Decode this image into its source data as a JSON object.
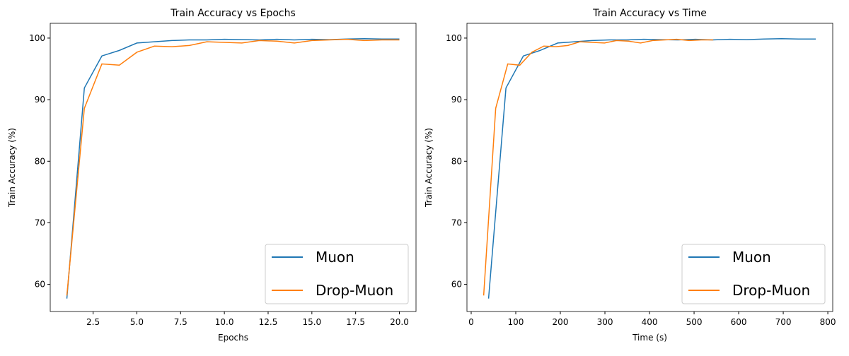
{
  "chart_data": [
    {
      "type": "line",
      "title": "Train Accuracy vs Epochs",
      "x_label": "Epochs",
      "y_label": "Train Accuracy (%)",
      "x": [
        1,
        2,
        3,
        4,
        5,
        6,
        7,
        8,
        9,
        10,
        11,
        12,
        13,
        14,
        15,
        16,
        17,
        18,
        19,
        20
      ],
      "series": [
        {
          "name": "Muon",
          "color": "#1f77b4",
          "values": [
            57.7,
            91.9,
            97.1,
            98.0,
            99.2,
            99.4,
            99.6,
            99.7,
            99.7,
            99.8,
            99.75,
            99.7,
            99.8,
            99.7,
            99.8,
            99.75,
            99.85,
            99.9,
            99.85,
            99.85
          ]
        },
        {
          "name": "Drop-Muon",
          "color": "#ff7f0e",
          "values": [
            58.2,
            88.6,
            95.8,
            95.6,
            97.7,
            98.7,
            98.6,
            98.8,
            99.4,
            99.3,
            99.2,
            99.6,
            99.5,
            99.2,
            99.6,
            99.7,
            99.8,
            99.6,
            99.7,
            99.7
          ]
        }
      ],
      "xlim": [
        0.05,
        20.95
      ],
      "ylim": [
        55.6,
        102.4
      ],
      "xticks": [
        {
          "value": 2.5,
          "label": "2.5"
        },
        {
          "value": 5,
          "label": "5.0"
        },
        {
          "value": 7.5,
          "label": "7.5"
        },
        {
          "value": 10,
          "label": "10.0"
        },
        {
          "value": 12.5,
          "label": "12.5"
        },
        {
          "value": 15,
          "label": "15.0"
        },
        {
          "value": 17.5,
          "label": "17.5"
        },
        {
          "value": 20,
          "label": "20.0"
        }
      ],
      "yticks": [
        60,
        70,
        80,
        90,
        100
      ],
      "legend": "lower right"
    },
    {
      "type": "line",
      "title": "Train Accuracy vs Time",
      "x_label": "Time (s)",
      "y_label": "Train Accuracy (%)",
      "series": [
        {
          "name": "Muon",
          "color": "#1f77b4",
          "x": [
            39,
            78,
            117,
            155,
            194,
            232,
            271,
            310,
            348,
            387,
            425,
            464,
            503,
            541,
            580,
            618,
            657,
            696,
            734,
            773
          ],
          "values": [
            57.7,
            91.9,
            97.1,
            98.0,
            99.2,
            99.4,
            99.6,
            99.7,
            99.7,
            99.8,
            99.75,
            99.7,
            99.8,
            99.7,
            99.8,
            99.75,
            99.85,
            99.9,
            99.85,
            99.85
          ]
        },
        {
          "name": "Drop-Muon",
          "color": "#ff7f0e",
          "x": [
            28,
            55,
            82,
            109,
            136,
            163,
            190,
            217,
            244,
            272,
            299,
            326,
            353,
            380,
            407,
            434,
            461,
            489,
            516,
            543
          ],
          "values": [
            58.2,
            88.6,
            95.8,
            95.6,
            97.7,
            98.7,
            98.6,
            98.8,
            99.4,
            99.3,
            99.2,
            99.6,
            99.5,
            99.2,
            99.6,
            99.7,
            99.8,
            99.6,
            99.7,
            99.7
          ]
        }
      ],
      "xlim": [
        -9.5,
        811
      ],
      "ylim": [
        55.6,
        102.4
      ],
      "xticks": [
        0,
        100,
        200,
        300,
        400,
        500,
        600,
        700,
        800
      ],
      "yticks": [
        60,
        70,
        80,
        90,
        100
      ],
      "legend": "lower right"
    }
  ]
}
